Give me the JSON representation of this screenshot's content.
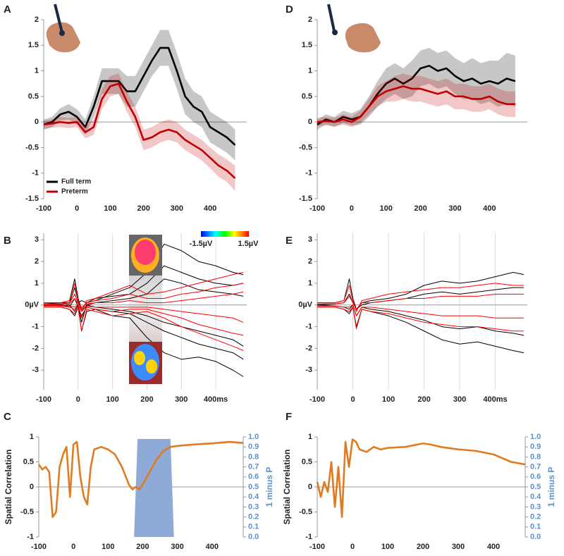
{
  "chart_data": [
    {
      "type": "line",
      "panel": "A",
      "xlim": [
        -100,
        510
      ],
      "ylim": [
        -1.5,
        2
      ],
      "xticks": [
        -100,
        0,
        100,
        200,
        300,
        400
      ],
      "yticks": [
        -1.5,
        -1,
        -0.5,
        0,
        0.5,
        1,
        1.5,
        2
      ],
      "legend": "lower left",
      "x": [
        -100,
        -75,
        -50,
        -25,
        0,
        25,
        50,
        75,
        100,
        125,
        150,
        175,
        200,
        225,
        250,
        275,
        300,
        325,
        350,
        375,
        400,
        425,
        450,
        475
      ],
      "series": [
        {
          "name": "Full term",
          "color": "#000000",
          "values": [
            -0.05,
            0,
            0.15,
            0.2,
            0.1,
            -0.1,
            0.3,
            0.8,
            0.8,
            0.8,
            0.6,
            0.6,
            0.9,
            1.2,
            1.45,
            1.45,
            1.0,
            0.5,
            0.3,
            0.2,
            -0.1,
            -0.2,
            -0.3,
            -0.45
          ],
          "error": [
            0.1,
            0.1,
            0.12,
            0.15,
            0.15,
            0.15,
            0.2,
            0.25,
            0.25,
            0.25,
            0.3,
            0.3,
            0.3,
            0.3,
            0.35,
            0.35,
            0.35,
            0.35,
            0.3,
            0.3,
            0.3,
            0.3,
            0.3,
            0.3
          ]
        },
        {
          "name": "Preterm",
          "color": "#c00000",
          "values": [
            -0.05,
            -0.03,
            0,
            -0.02,
            0,
            -0.2,
            -0.1,
            0.45,
            0.7,
            0.75,
            0.4,
            0.1,
            -0.35,
            -0.3,
            -0.2,
            -0.15,
            -0.2,
            -0.35,
            -0.45,
            -0.55,
            -0.7,
            -0.85,
            -0.95,
            -1.1
          ],
          "error": [
            0.08,
            0.08,
            0.1,
            0.1,
            0.1,
            0.12,
            0.15,
            0.2,
            0.2,
            0.2,
            0.2,
            0.2,
            0.2,
            0.2,
            0.2,
            0.2,
            0.2,
            0.2,
            0.2,
            0.2,
            0.2,
            0.22,
            0.22,
            0.25
          ]
        }
      ]
    },
    {
      "type": "line",
      "panel": "B",
      "xlim": [
        -100,
        490
      ],
      "ylim": [
        -3.9,
        3.3
      ],
      "grid": "x",
      "xticks": [
        -100,
        0,
        100,
        200,
        300,
        {
          "value": 400,
          "label": "400ms"
        }
      ],
      "yticks": [
        -3,
        -2,
        -1,
        {
          "value": 0,
          "label": "0µV"
        },
        1,
        2,
        3
      ],
      "colorbar": {
        "min_label": "-1.5µV",
        "max_label": "1.5µV"
      },
      "x": [
        -100,
        -50,
        -25,
        -10,
        0,
        10,
        25,
        50,
        100,
        150,
        200,
        250,
        300,
        350,
        400,
        450,
        480
      ],
      "series": [
        {
          "color": "#000000",
          "values": [
            0.1,
            0.1,
            0.2,
            1.2,
            0.3,
            -0.2,
            0.1,
            0.2,
            0.5,
            0.8,
            1.5,
            2.8,
            2.5,
            2.0,
            1.8,
            1.5,
            1.4
          ]
        },
        {
          "color": "#000000",
          "values": [
            -0.1,
            -0.1,
            -0.2,
            -0.5,
            -0.1,
            -1.2,
            -0.3,
            -0.2,
            -0.5,
            -0.6,
            -1.5,
            -2.2,
            -2.5,
            -2.4,
            -2.6,
            -3.0,
            -3.3
          ]
        },
        {
          "color": "#000000",
          "values": [
            0.05,
            0.1,
            0.1,
            0.5,
            0.1,
            0.2,
            0.1,
            0.3,
            0.4,
            0.5,
            1.0,
            1.8,
            1.5,
            1.2,
            1.0,
            0.9,
            1.0
          ]
        },
        {
          "color": "#000000",
          "values": [
            -0.05,
            0,
            -0.1,
            0.3,
            -0.1,
            -0.5,
            -0.1,
            -0.2,
            -0.3,
            -0.4,
            -0.8,
            -1.2,
            -1.5,
            -1.8,
            -2.0,
            -2.2,
            -2.5
          ]
        },
        {
          "color": "#000000",
          "values": [
            0,
            0.05,
            0.1,
            0.8,
            0.2,
            -0.3,
            0,
            0.1,
            0.2,
            0.3,
            0.5,
            1.2,
            1.0,
            0.7,
            0.6,
            0.5,
            0.4
          ]
        },
        {
          "color": "#000000",
          "values": [
            0,
            -0.05,
            0,
            -0.3,
            0,
            -0.8,
            0,
            -0.1,
            -0.2,
            -0.3,
            -0.5,
            -0.8,
            -1.0,
            -1.2,
            -1.4,
            -1.6,
            -1.9
          ]
        },
        {
          "color": "#ff0000",
          "values": [
            0.1,
            0.1,
            0.2,
            1.0,
            0.2,
            -0.3,
            0.2,
            0.3,
            0.6,
            0.9,
            0.5,
            0.6,
            0.8,
            1.0,
            1.2,
            1.4,
            1.5
          ]
        },
        {
          "color": "#ff0000",
          "values": [
            -0.1,
            -0.1,
            -0.2,
            -0.4,
            -0.1,
            -1.2,
            -0.2,
            -0.3,
            -0.5,
            -0.4,
            -0.3,
            -0.6,
            -1.0,
            -1.3,
            -1.6,
            -1.9,
            -2.1
          ]
        },
        {
          "color": "#ff0000",
          "values": [
            0.05,
            0.05,
            0.1,
            0.5,
            0.1,
            -0.2,
            0.1,
            0.2,
            0.3,
            0.5,
            0.3,
            0.3,
            0.5,
            0.6,
            0.8,
            0.9,
            1.0
          ]
        },
        {
          "color": "#ff0000",
          "values": [
            -0.05,
            -0.05,
            -0.1,
            -0.2,
            0,
            -0.6,
            -0.1,
            -0.2,
            -0.3,
            -0.2,
            -0.2,
            -0.4,
            -0.6,
            -0.9,
            -1.1,
            -1.3,
            -1.4
          ]
        },
        {
          "color": "#ff0000",
          "values": [
            0,
            0.02,
            0.05,
            0.3,
            0.05,
            -0.1,
            0.05,
            0.1,
            0.1,
            0.2,
            0.1,
            0.1,
            0.2,
            0.3,
            0.4,
            0.5,
            0.6
          ]
        },
        {
          "color": "#ff0000",
          "values": [
            0,
            -0.02,
            -0.05,
            -0.1,
            0,
            -0.3,
            -0.05,
            -0.1,
            -0.1,
            -0.1,
            -0.1,
            -0.2,
            -0.3,
            -0.4,
            -0.5,
            -0.6,
            -0.8
          ]
        }
      ]
    },
    {
      "type": "line",
      "panel": "C",
      "xlim": [
        -100,
        490
      ],
      "ylim": [
        -1,
        1
      ],
      "y2lim": [
        0,
        1
      ],
      "ylabel": "Spatial Correlation",
      "y2label": "1 minus P",
      "xticks": [
        -100,
        0,
        100,
        200,
        300,
        400
      ],
      "yticks": [
        -1,
        -0.5,
        0,
        0.5,
        1
      ],
      "y2ticks": [
        {
          "value": 0,
          "label": "0.0"
        },
        0.1,
        0.2,
        0.3,
        0.4,
        0.5,
        0.6,
        0.7,
        0.8,
        0.9,
        {
          "value": 1,
          "label": "1.0"
        }
      ],
      "x": [
        -100,
        -90,
        -80,
        -70,
        -60,
        -50,
        -40,
        -30,
        -20,
        -10,
        0,
        10,
        20,
        30,
        40,
        50,
        60,
        80,
        100,
        120,
        140,
        160,
        170,
        180,
        190,
        200,
        220,
        240,
        260,
        280,
        300,
        350,
        400,
        450,
        490
      ],
      "series": [
        {
          "axis": "y2",
          "fill": true,
          "color": "#8eaad6",
          "x": [
            175,
            185,
            280,
            290
          ],
          "values": [
            0,
            0.98,
            0.98,
            0
          ]
        },
        {
          "color": "#e07b22",
          "values": [
            0.45,
            0.35,
            0.4,
            0.3,
            -0.6,
            -0.5,
            0.4,
            0.65,
            0.8,
            -0.2,
            0.85,
            0.9,
            0.2,
            -0.2,
            -0.35,
            0.4,
            0.75,
            0.8,
            0.75,
            0.65,
            0.4,
            0.05,
            -0.05,
            0,
            -0.05,
            0.05,
            0.3,
            0.55,
            0.72,
            0.8,
            0.82,
            0.85,
            0.87,
            0.9,
            0.88
          ]
        }
      ]
    },
    {
      "type": "line",
      "panel": "D",
      "xlim": [
        -100,
        510
      ],
      "ylim": [
        -1.5,
        2
      ],
      "xticks": [
        -100,
        0,
        100,
        200,
        300,
        400
      ],
      "yticks": [
        -1.5,
        -1,
        -0.5,
        0,
        0.5,
        1,
        1.5,
        2
      ],
      "x": [
        -100,
        -75,
        -50,
        -25,
        0,
        25,
        50,
        75,
        100,
        125,
        150,
        175,
        200,
        225,
        250,
        275,
        300,
        325,
        350,
        375,
        400,
        425,
        450,
        475
      ],
      "series": [
        {
          "color": "#000000",
          "values": [
            -0.05,
            0.05,
            0,
            0.1,
            0.05,
            0.1,
            0.3,
            0.55,
            0.75,
            0.85,
            0.75,
            0.85,
            1.05,
            1.1,
            1.0,
            1.05,
            0.9,
            0.8,
            0.85,
            0.75,
            0.8,
            0.75,
            0.85,
            0.8
          ],
          "error": [
            0.1,
            0.1,
            0.1,
            0.12,
            0.12,
            0.15,
            0.2,
            0.25,
            0.3,
            0.3,
            0.3,
            0.35,
            0.35,
            0.35,
            0.35,
            0.35,
            0.35,
            0.35,
            0.4,
            0.4,
            0.4,
            0.45,
            0.5,
            0.5
          ]
        },
        {
          "color": "#c00000",
          "values": [
            0,
            0.02,
            0,
            0.05,
            0,
            0.1,
            0.3,
            0.5,
            0.6,
            0.65,
            0.7,
            0.65,
            0.65,
            0.6,
            0.55,
            0.6,
            0.5,
            0.5,
            0.45,
            0.45,
            0.5,
            0.4,
            0.35,
            0.35
          ],
          "error": [
            0.08,
            0.08,
            0.08,
            0.1,
            0.1,
            0.12,
            0.15,
            0.2,
            0.2,
            0.25,
            0.25,
            0.25,
            0.25,
            0.25,
            0.25,
            0.25,
            0.25,
            0.25,
            0.25,
            0.25,
            0.25,
            0.25,
            0.25,
            0.25
          ]
        }
      ]
    },
    {
      "type": "line",
      "panel": "E",
      "xlim": [
        -100,
        490
      ],
      "ylim": [
        -3.9,
        3.3
      ],
      "grid": "x",
      "xticks": [
        -100,
        0,
        100,
        200,
        300,
        {
          "value": 400,
          "label": "400ms"
        }
      ],
      "yticks": [
        -3,
        -2,
        -1,
        {
          "value": 0,
          "label": "0µV"
        },
        1,
        2,
        3
      ],
      "x": [
        -100,
        -50,
        -25,
        -10,
        0,
        10,
        25,
        50,
        100,
        150,
        200,
        250,
        300,
        350,
        400,
        450,
        480
      ],
      "series": [
        {
          "color": "#000000",
          "values": [
            0.1,
            0.1,
            0.2,
            1.2,
            0.3,
            -0.2,
            0.1,
            0.2,
            0.3,
            0.5,
            0.9,
            1.1,
            1.0,
            1.1,
            1.3,
            1.5,
            1.4
          ]
        },
        {
          "color": "#000000",
          "values": [
            -0.1,
            -0.1,
            -0.2,
            -0.4,
            -0.1,
            -1.0,
            -0.2,
            -0.3,
            -0.5,
            -0.8,
            -1.2,
            -1.6,
            -1.8,
            -1.7,
            -1.9,
            -2.1,
            -2.2
          ]
        },
        {
          "color": "#000000",
          "values": [
            0,
            0.05,
            0.1,
            0.5,
            0.1,
            -0.2,
            0,
            0.1,
            0.2,
            0.3,
            0.5,
            0.6,
            0.5,
            0.6,
            0.7,
            0.8,
            0.8
          ]
        },
        {
          "color": "#000000",
          "values": [
            0,
            -0.05,
            -0.1,
            -0.2,
            0,
            -0.5,
            -0.1,
            -0.2,
            -0.3,
            -0.5,
            -0.7,
            -1.0,
            -1.1,
            -1.0,
            -1.2,
            -1.3,
            -1.4
          ]
        },
        {
          "color": "#ff0000",
          "values": [
            0.1,
            0.1,
            0.2,
            0.9,
            0.2,
            -0.3,
            0.2,
            0.3,
            0.5,
            0.6,
            0.7,
            0.8,
            0.8,
            0.9,
            1.0,
            0.9,
            0.9
          ]
        },
        {
          "color": "#ff0000",
          "values": [
            -0.1,
            -0.1,
            -0.2,
            -0.3,
            -0.1,
            -1.1,
            -0.2,
            -0.3,
            -0.4,
            -0.6,
            -0.8,
            -0.9,
            -1.0,
            -1.0,
            -1.1,
            -1.2,
            -1.2
          ]
        },
        {
          "color": "#ff0000",
          "values": [
            0.05,
            0.05,
            0.1,
            0.4,
            0.1,
            -0.2,
            0.1,
            0.1,
            0.2,
            0.3,
            0.3,
            0.4,
            0.4,
            0.4,
            0.5,
            0.5,
            0.5
          ]
        },
        {
          "color": "#ff0000",
          "values": [
            -0.05,
            -0.05,
            -0.1,
            -0.1,
            0,
            -0.5,
            -0.1,
            -0.1,
            -0.2,
            -0.3,
            -0.4,
            -0.5,
            -0.5,
            -0.5,
            -0.6,
            -0.6,
            -0.6
          ]
        }
      ]
    },
    {
      "type": "line",
      "panel": "F",
      "xlim": [
        -100,
        490
      ],
      "ylim": [
        -1,
        1
      ],
      "y2lim": [
        0,
        1
      ],
      "ylabel": "Spatial Correlation",
      "y2label": "1 minus P",
      "xticks": [
        -100,
        0,
        100,
        200,
        300,
        400
      ],
      "yticks": [
        -1,
        -0.5,
        0,
        0.5,
        1
      ],
      "y2ticks": [
        {
          "value": 0,
          "label": "0.0"
        },
        0.1,
        0.2,
        0.3,
        0.4,
        0.5,
        0.6,
        0.7,
        0.8,
        0.9,
        {
          "value": 1,
          "label": "1.0"
        }
      ],
      "x": [
        -100,
        -90,
        -80,
        -70,
        -60,
        -50,
        -40,
        -30,
        -20,
        -10,
        0,
        10,
        20,
        40,
        60,
        80,
        100,
        150,
        200,
        220,
        250,
        300,
        350,
        400,
        450,
        490
      ],
      "series": [
        {
          "color": "#e07b22",
          "values": [
            0.1,
            -0.2,
            0.1,
            -0.1,
            0.5,
            -0.4,
            0.4,
            -0.6,
            0.9,
            0.4,
            0.95,
            0.9,
            0.75,
            0.7,
            0.8,
            0.75,
            0.78,
            0.8,
            0.87,
            0.85,
            0.8,
            0.75,
            0.72,
            0.65,
            0.5,
            0.45
          ]
        }
      ]
    }
  ]
}
